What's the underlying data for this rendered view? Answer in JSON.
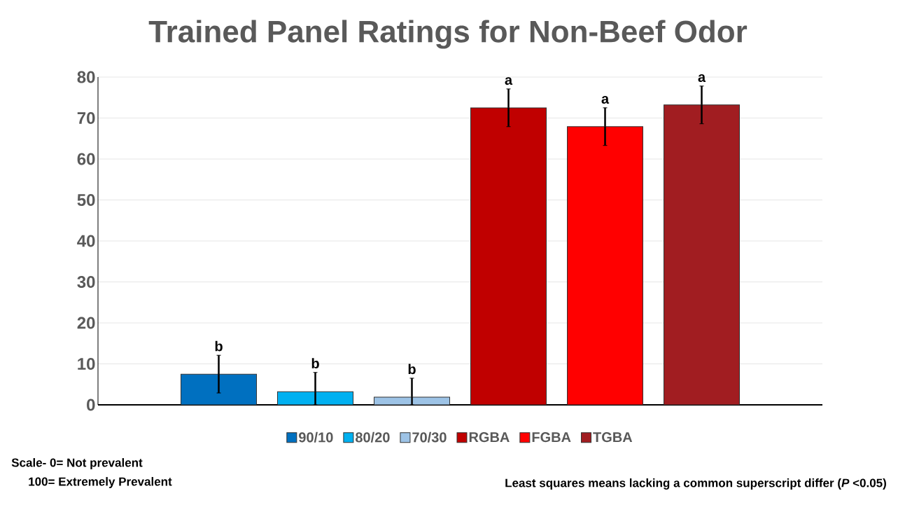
{
  "chart_data": {
    "type": "bar",
    "title": "Trained Panel Ratings for Non-Beef Odor",
    "categories": [
      null
    ],
    "series": [
      {
        "name": "90/10",
        "color": "#0070c0",
        "values": [
          7.5
        ],
        "errors": [
          4.6
        ],
        "value_labels": [
          "b"
        ]
      },
      {
        "name": "80/20",
        "color": "#00b0f0",
        "values": [
          3.2
        ],
        "errors": [
          [
            0,
            7.9
          ]
        ],
        "value_labels": [
          "b"
        ]
      },
      {
        "name": "70/30",
        "color": "#9dc3e6",
        "values": [
          1.9
        ],
        "errors": [
          [
            0,
            6.5
          ]
        ],
        "value_labels": [
          "b"
        ]
      },
      {
        "name": "RGBA",
        "color": "#c00000",
        "values": [
          72.5
        ],
        "errors": [
          4.6
        ],
        "value_labels": [
          "a"
        ]
      },
      {
        "name": "FGBA",
        "color": "#ff0000",
        "values": [
          67.9
        ],
        "errors": [
          4.6
        ],
        "value_labels": [
          "a"
        ]
      },
      {
        "name": "TGBA",
        "color": "#a11d21",
        "values": [
          73.2
        ],
        "errors": [
          4.6
        ],
        "value_labels": [
          "a"
        ]
      }
    ],
    "ylim": [
      0,
      80
    ],
    "yticks": [
      0,
      10,
      20,
      30,
      40,
      50,
      60,
      70,
      80
    ],
    "grid": "y",
    "legend": "bottom",
    "annotations": [
      "Scale- 0= Not prevalent",
      "100= Extremely Prevalent",
      "Least squares means lacking a common superscript differ (*P* <0.05)"
    ]
  }
}
